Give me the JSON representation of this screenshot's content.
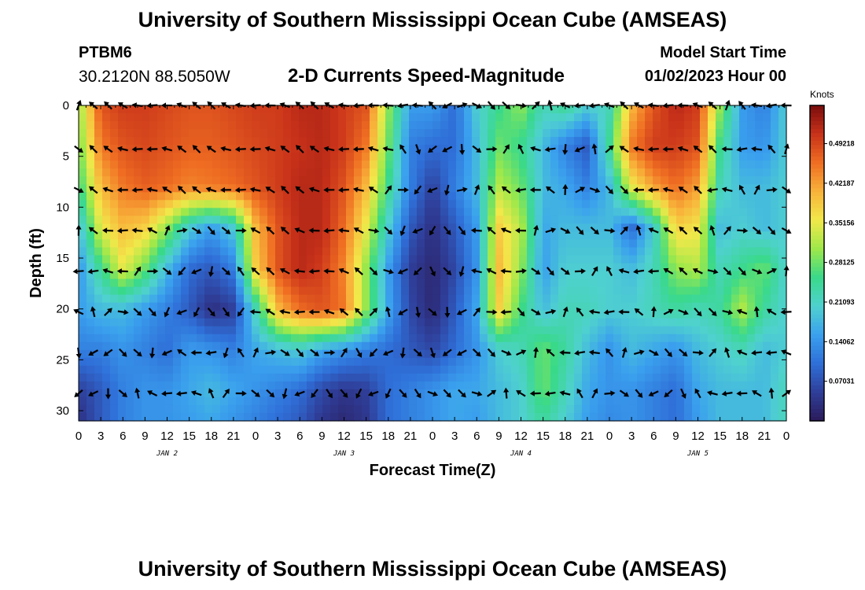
{
  "header": {
    "title": "University of Southern Mississippi Ocean Cube (AMSEAS)",
    "station": "PTBM6",
    "coords": "30.2120N  88.5050W",
    "subtitle": "2-D Currents Speed-Magnitude",
    "model_start_label": "Model Start Time",
    "model_start_value": "01/02/2023 Hour 00"
  },
  "footer": {
    "title": "University of Southern Mississippi Ocean Cube (AMSEAS)"
  },
  "colors": {
    "ramp": [
      "#2b1a5a",
      "#2f3f9a",
      "#2f6fd8",
      "#3aa0ee",
      "#4fd1cf",
      "#39d98a",
      "#9ee84a",
      "#f2e84a",
      "#f8b23a",
      "#ef6d22",
      "#c8321a",
      "#7a0c0c"
    ]
  },
  "chart_data": {
    "type": "heatmap",
    "title": "2-D Currents Speed-Magnitude",
    "xlabel": "Forecast Time(Z)",
    "ylabel": "Depth (ft)",
    "ylim": [
      0,
      31
    ],
    "xlim_hours": [
      0,
      96
    ],
    "x_ticks": [
      "0",
      "3",
      "6",
      "9",
      "12",
      "15",
      "18",
      "21",
      "0",
      "3",
      "6",
      "9",
      "12",
      "15",
      "18",
      "21",
      "0",
      "3",
      "6",
      "9",
      "12",
      "15",
      "18",
      "21",
      "0",
      "3",
      "6",
      "9",
      "12",
      "15",
      "18",
      "21",
      "0"
    ],
    "y_ticks": [
      0,
      5,
      10,
      15,
      20,
      25,
      30
    ],
    "day_labels": [
      {
        "label": "JAN 2",
        "hour": 12
      },
      {
        "label": "JAN 3",
        "hour": 36
      },
      {
        "label": "JAN 4",
        "hour": 60
      },
      {
        "label": "JAN 5",
        "hour": 84
      }
    ],
    "colorbar": {
      "units": "Knots",
      "range": [
        0,
        0.56
      ],
      "labels": [
        "0.49218",
        "0.42187",
        "0.35156",
        "0.28125",
        "0.21093",
        "0.14062",
        "0.07031"
      ]
    },
    "speed_rows_depths": [
      0,
      4,
      8,
      12,
      16,
      20,
      24,
      28,
      31
    ],
    "speed_cols_hours": [
      0,
      3,
      6,
      9,
      12,
      15,
      18,
      21,
      24,
      27,
      30,
      33,
      36,
      39,
      42,
      45,
      48,
      51,
      54,
      57,
      60,
      63,
      66,
      69,
      72,
      75,
      78,
      81,
      84,
      87,
      90,
      93,
      96
    ],
    "speed": [
      [
        0.3,
        0.48,
        0.5,
        0.5,
        0.49,
        0.48,
        0.48,
        0.49,
        0.5,
        0.5,
        0.52,
        0.52,
        0.5,
        0.48,
        0.3,
        0.15,
        0.15,
        0.1,
        0.2,
        0.25,
        0.3,
        0.22,
        0.25,
        0.2,
        0.22,
        0.4,
        0.48,
        0.52,
        0.5,
        0.3,
        0.15,
        0.12,
        0.2
      ],
      [
        0.28,
        0.45,
        0.48,
        0.49,
        0.48,
        0.47,
        0.47,
        0.48,
        0.49,
        0.5,
        0.51,
        0.52,
        0.5,
        0.45,
        0.28,
        0.12,
        0.1,
        0.1,
        0.18,
        0.28,
        0.25,
        0.18,
        0.12,
        0.08,
        0.25,
        0.45,
        0.5,
        0.5,
        0.48,
        0.25,
        0.15,
        0.14,
        0.2
      ],
      [
        0.25,
        0.4,
        0.45,
        0.47,
        0.46,
        0.44,
        0.45,
        0.46,
        0.48,
        0.5,
        0.52,
        0.52,
        0.48,
        0.4,
        0.25,
        0.12,
        0.05,
        0.12,
        0.18,
        0.32,
        0.28,
        0.18,
        0.16,
        0.12,
        0.18,
        0.35,
        0.42,
        0.46,
        0.42,
        0.22,
        0.18,
        0.18,
        0.2
      ],
      [
        0.18,
        0.35,
        0.4,
        0.38,
        0.3,
        0.2,
        0.15,
        0.2,
        0.4,
        0.48,
        0.52,
        0.52,
        0.46,
        0.35,
        0.2,
        0.08,
        0.03,
        0.08,
        0.15,
        0.38,
        0.32,
        0.16,
        0.18,
        0.18,
        0.18,
        0.1,
        0.2,
        0.38,
        0.36,
        0.18,
        0.2,
        0.18,
        0.2
      ],
      [
        0.14,
        0.25,
        0.35,
        0.28,
        0.18,
        0.1,
        0.08,
        0.12,
        0.38,
        0.48,
        0.52,
        0.5,
        0.44,
        0.3,
        0.15,
        0.05,
        0.02,
        0.06,
        0.14,
        0.4,
        0.3,
        0.15,
        0.2,
        0.2,
        0.2,
        0.18,
        0.22,
        0.3,
        0.32,
        0.22,
        0.25,
        0.28,
        0.2
      ],
      [
        0.15,
        0.18,
        0.18,
        0.15,
        0.12,
        0.08,
        0.03,
        0.05,
        0.22,
        0.4,
        0.46,
        0.48,
        0.45,
        0.3,
        0.16,
        0.06,
        0.02,
        0.08,
        0.16,
        0.38,
        0.26,
        0.18,
        0.22,
        0.22,
        0.2,
        0.2,
        0.22,
        0.24,
        0.22,
        0.24,
        0.32,
        0.24,
        0.2
      ],
      [
        0.12,
        0.12,
        0.14,
        0.12,
        0.1,
        0.15,
        0.14,
        0.12,
        0.16,
        0.18,
        0.2,
        0.16,
        0.14,
        0.12,
        0.1,
        0.08,
        0.06,
        0.1,
        0.14,
        0.2,
        0.22,
        0.28,
        0.24,
        0.18,
        0.14,
        0.18,
        0.16,
        0.14,
        0.18,
        0.2,
        0.22,
        0.18,
        0.2
      ],
      [
        0.05,
        0.08,
        0.12,
        0.14,
        0.14,
        0.16,
        0.18,
        0.16,
        0.14,
        0.12,
        0.1,
        0.06,
        0.04,
        0.05,
        0.1,
        0.12,
        0.14,
        0.16,
        0.16,
        0.18,
        0.2,
        0.28,
        0.22,
        0.16,
        0.14,
        0.14,
        0.12,
        0.1,
        0.16,
        0.18,
        0.18,
        0.18,
        0.22
      ],
      [
        0.03,
        0.08,
        0.12,
        0.14,
        0.14,
        0.15,
        0.16,
        0.14,
        0.12,
        0.1,
        0.08,
        0.04,
        0.02,
        0.04,
        0.1,
        0.12,
        0.14,
        0.16,
        0.15,
        0.18,
        0.2,
        0.24,
        0.2,
        0.15,
        0.13,
        0.14,
        0.12,
        0.1,
        0.15,
        0.18,
        0.18,
        0.18,
        0.22
      ]
    ],
    "vector_depths": [
      0,
      4.3,
      8.3,
      12.3,
      16.3,
      20.3,
      24.3,
      28.3
    ],
    "vector_hours": [
      0,
      2,
      4,
      6,
      8,
      10,
      12,
      14,
      16,
      18,
      20,
      22,
      24,
      26,
      28,
      30,
      32,
      34,
      36,
      38,
      40,
      42,
      44,
      46,
      48,
      50,
      52,
      54,
      56,
      58,
      60,
      62,
      64,
      66,
      68,
      70,
      72,
      74,
      76,
      78,
      80,
      82,
      84,
      86,
      88,
      90,
      92,
      94,
      96
    ]
  }
}
